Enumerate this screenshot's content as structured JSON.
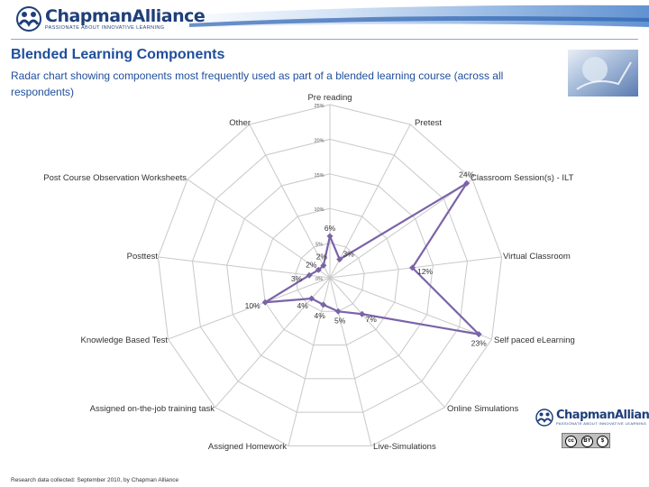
{
  "header": {
    "logo_name": "ChapmanAlliance",
    "logo_tagline": "PASSIONATE ABOUT INNOVATIVE LEARNING"
  },
  "slide": {
    "title": "Blended Learning Components",
    "subtitle": "Radar chart showing components most frequently used as part of a blended learning course (across all respondents)",
    "footnote": "Research data collected: September 2010, by Chapman Alliance"
  },
  "license": {
    "cc_label": "cc",
    "by_label": "BY",
    "nc_label": "$"
  },
  "colors": {
    "accent": "#1f4e9c",
    "series": "#7b63a8",
    "grid": "#c8c8c8"
  },
  "chart_data": {
    "type": "radar",
    "title": "",
    "categories": [
      "Pre reading",
      "Pretest",
      "Classroom Session(s) - ILT",
      "Virtual Classroom",
      "Self paced eLearning",
      "Online Simulations",
      "Live-Simulations",
      "Assigned Homework",
      "Assigned on-the-job training task",
      "Knowledge Based Test",
      "Posttest",
      "Post Course Observation Worksheets",
      "Other"
    ],
    "series": [
      {
        "name": "Blended learning components",
        "values": [
          6,
          3,
          24,
          12,
          23,
          7,
          5,
          4,
          4,
          10,
          3,
          2,
          2
        ],
        "labels": [
          "6%",
          "3%",
          "24%",
          "12%",
          "23%",
          "7%",
          "5%",
          "4%",
          "4%",
          "10%",
          "3%",
          "2%",
          "2%"
        ]
      }
    ],
    "rmax": 25,
    "ticks": [
      0,
      5,
      10,
      15,
      20,
      25
    ],
    "tick_labels": [
      "0%",
      "5%",
      "10%",
      "15%",
      "20%",
      "25%"
    ],
    "grid": true,
    "legend": "none"
  }
}
